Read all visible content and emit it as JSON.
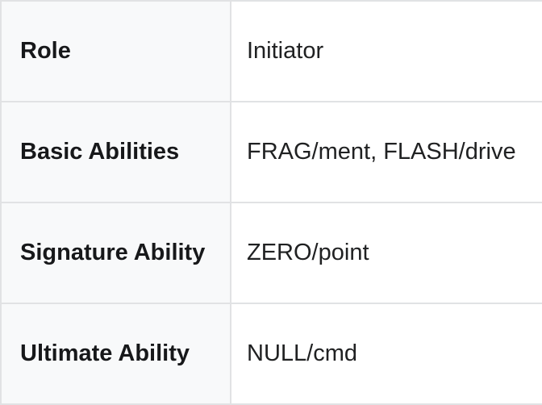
{
  "colors": {
    "label_column_bg": "#f8f9fa",
    "border": "#e1e2e4",
    "label_text": "#17181a",
    "value_text": "#202122",
    "value_bg": "#ffffff"
  },
  "table": {
    "rows": [
      {
        "label": "Role",
        "value": "Initiator"
      },
      {
        "label": "Basic Abilities",
        "value": "FRAG/ment, FLASH/drive"
      },
      {
        "label": "Signature Ability",
        "value": "ZERO/point"
      },
      {
        "label": "Ultimate Ability",
        "value": "NULL/cmd"
      }
    ]
  }
}
